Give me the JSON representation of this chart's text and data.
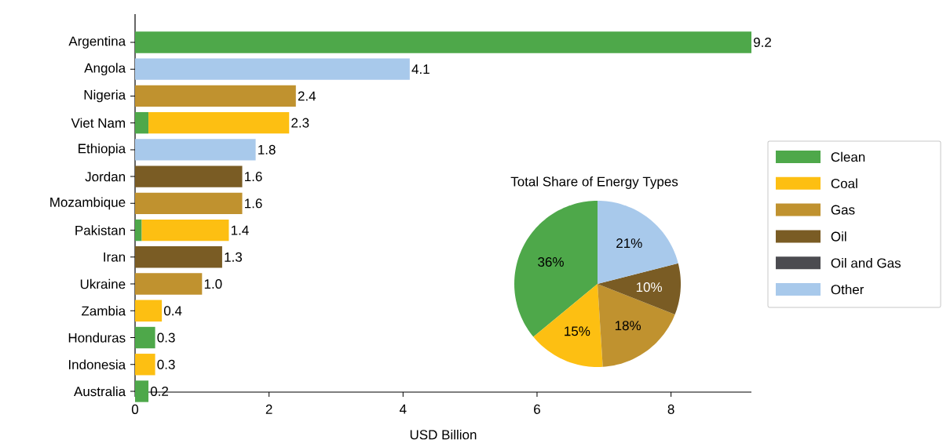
{
  "chart_data": [
    {
      "type": "bar",
      "orientation": "horizontal",
      "stacked": true,
      "xlabel": "USD Billion",
      "xlim": [
        0,
        9.2
      ],
      "xticks": [
        0,
        2,
        4,
        6,
        8
      ],
      "legend": "right",
      "categories": [
        "Argentina",
        "Angola",
        "Nigeria",
        "Viet Nam",
        "Ethiopia",
        "Jordan",
        "Mozambique",
        "Pakistan",
        "Iran",
        "Ukraine",
        "Zambia",
        "Honduras",
        "Indonesia",
        "Australia"
      ],
      "series": [
        {
          "name": "Clean",
          "color": "#4ea84a",
          "values": [
            9.2,
            null,
            null,
            0.2,
            null,
            null,
            null,
            0.1,
            null,
            null,
            null,
            0.3,
            null,
            0.2
          ]
        },
        {
          "name": "Coal",
          "color": "#fdbf12",
          "values": [
            null,
            null,
            null,
            2.1,
            null,
            null,
            null,
            1.3,
            null,
            null,
            0.4,
            null,
            0.3,
            null
          ]
        },
        {
          "name": "Gas",
          "color": "#c0922f",
          "values": [
            null,
            null,
            2.4,
            null,
            null,
            null,
            1.6,
            null,
            null,
            1.0,
            null,
            null,
            null,
            null
          ]
        },
        {
          "name": "Oil",
          "color": "#7a5c24",
          "values": [
            null,
            null,
            null,
            null,
            null,
            1.6,
            null,
            null,
            1.3,
            null,
            null,
            null,
            null,
            null
          ]
        },
        {
          "name": "Oil and Gas",
          "color": "#4b4b50",
          "values": [
            null,
            null,
            null,
            null,
            null,
            null,
            null,
            null,
            null,
            null,
            null,
            null,
            null,
            null
          ]
        },
        {
          "name": "Other",
          "color": "#a8c9eb",
          "values": [
            null,
            4.1,
            null,
            null,
            1.8,
            null,
            null,
            null,
            null,
            null,
            null,
            null,
            null,
            null
          ]
        }
      ],
      "totals": [
        "9.2",
        "4.1",
        "2.4",
        "2.3",
        "1.8",
        "1.6",
        "1.6",
        "1.4",
        "1.3",
        "1.0",
        "0.4",
        "0.3",
        "0.3",
        "0.2"
      ]
    },
    {
      "type": "pie",
      "title": "Total Share of Energy Types",
      "categories": [
        null,
        null,
        null,
        null,
        null
      ],
      "values": [
        36,
        15,
        18,
        10,
        21
      ],
      "colors": [
        "#4ea84a",
        "#fdbf12",
        "#c0922f",
        "#7a5c24",
        "#a8c9eb"
      ],
      "value_labels": [
        "36%",
        "15%",
        "18%",
        "10%",
        "21%"
      ]
    }
  ]
}
